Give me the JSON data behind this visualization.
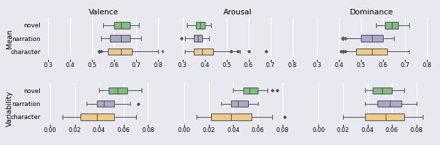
{
  "colors": {
    "novel": "#7fbf7b",
    "narration": "#a9a9c8",
    "character": "#f0c98a"
  },
  "background_color": "#e8e8f0",
  "row_labels": [
    "Mean",
    "Variability"
  ],
  "col_labels": [
    "Valence",
    "Arousal",
    "Dominance"
  ],
  "categories": [
    "novel",
    "narration",
    "character"
  ],
  "mean_data": {
    "Valence": {
      "novel": [
        0.55,
        0.6,
        0.63,
        0.67,
        0.71
      ],
      "narration": [
        0.54,
        0.58,
        0.63,
        0.67,
        0.72
      ],
      "character": [
        0.53,
        0.57,
        0.63,
        0.68,
        0.8
      ]
    },
    "Arousal": {
      "novel": [
        0.32,
        0.36,
        0.38,
        0.4,
        0.43
      ],
      "narration": [
        0.31,
        0.35,
        0.37,
        0.39,
        0.42
      ],
      "character": [
        0.31,
        0.35,
        0.39,
        0.44,
        0.56
      ]
    },
    "Dominance": {
      "novel": [
        0.57,
        0.61,
        0.64,
        0.67,
        0.72
      ],
      "narration": [
        0.42,
        0.5,
        0.55,
        0.6,
        0.65
      ],
      "character": [
        0.42,
        0.48,
        0.55,
        0.62,
        0.72
      ]
    }
  },
  "variability_data": {
    "Valence": {
      "novel": [
        0.04,
        0.048,
        0.055,
        0.063,
        0.075
      ],
      "narration": [
        0.03,
        0.038,
        0.044,
        0.052,
        0.065
      ],
      "character": [
        0.01,
        0.025,
        0.038,
        0.052,
        0.07
      ]
    },
    "Arousal": {
      "novel": [
        0.04,
        0.048,
        0.053,
        0.06,
        0.068
      ],
      "narration": [
        0.03,
        0.038,
        0.044,
        0.052,
        0.06
      ],
      "character": [
        0.01,
        0.022,
        0.038,
        0.055,
        0.072
      ]
    },
    "Dominance": {
      "novel": [
        0.038,
        0.044,
        0.052,
        0.06,
        0.07
      ],
      "narration": [
        0.038,
        0.048,
        0.058,
        0.068,
        0.08
      ],
      "character": [
        0.02,
        0.038,
        0.055,
        0.07,
        0.085
      ]
    }
  },
  "mean_outliers": {
    "Valence": {
      "novel": [],
      "narration": [],
      "character": [
        0.53,
        0.54,
        0.82
      ]
    },
    "Arousal": {
      "novel": [],
      "narration": [
        0.295
      ],
      "character": [
        0.52,
        0.55,
        0.6,
        0.68
      ]
    },
    "Dominance": {
      "novel": [],
      "narration": [
        0.415,
        0.43
      ],
      "character": [
        0.41,
        0.42,
        0.43
      ]
    }
  },
  "variability_outliers": {
    "Valence": {
      "novel": [],
      "narration": [
        0.072
      ],
      "character": []
    },
    "Arousal": {
      "novel": [
        0.072,
        0.076
      ],
      "narration": [],
      "character": [
        0.082
      ]
    },
    "Dominance": {
      "novel": [],
      "narration": [],
      "character": []
    }
  },
  "mean_xlim": [
    0.28,
    0.82
  ],
  "mean_xticks": [
    0.3,
    0.4,
    0.5,
    0.6,
    0.7,
    0.8
  ],
  "variability_xlim": [
    -0.005,
    0.092
  ],
  "variability_xticks": [
    0.0,
    0.02,
    0.04,
    0.06,
    0.08
  ]
}
